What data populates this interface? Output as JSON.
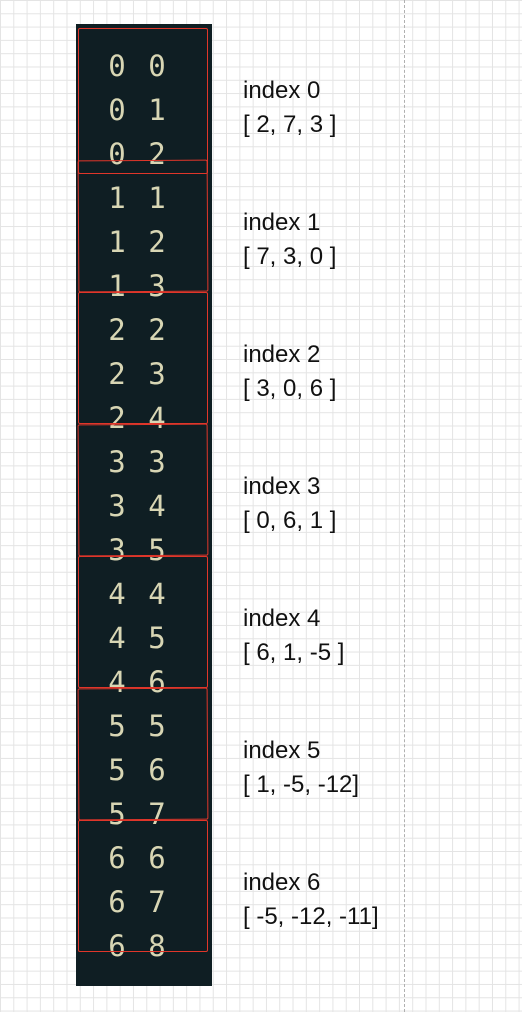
{
  "groups": [
    {
      "rows": [
        [
          "0",
          "0"
        ],
        [
          "0",
          "1"
        ],
        [
          "0",
          "2"
        ]
      ],
      "index_label": "index 0",
      "values_label": "[ 2, 7, 3 ]"
    },
    {
      "rows": [
        [
          "1",
          "1"
        ],
        [
          "1",
          "2"
        ],
        [
          "1",
          "3"
        ]
      ],
      "index_label": "index 1",
      "values_label": "[ 7, 3, 0 ]"
    },
    {
      "rows": [
        [
          "2",
          "2"
        ],
        [
          "2",
          "3"
        ],
        [
          "2",
          "4"
        ]
      ],
      "index_label": "index 2",
      "values_label": "[ 3, 0, 6 ]"
    },
    {
      "rows": [
        [
          "3",
          "3"
        ],
        [
          "3",
          "4"
        ],
        [
          "3",
          "5"
        ]
      ],
      "index_label": "index 3",
      "values_label": "[ 0, 6, 1 ]"
    },
    {
      "rows": [
        [
          "4",
          "4"
        ],
        [
          "4",
          "5"
        ],
        [
          "4",
          "6"
        ]
      ],
      "index_label": "index 4",
      "values_label": "[ 6, 1, -5 ]"
    },
    {
      "rows": [
        [
          "5",
          "5"
        ],
        [
          "5",
          "6"
        ],
        [
          "5",
          "7"
        ]
      ],
      "index_label": "index 5",
      "values_label": "[ 1, -5, -12]"
    },
    {
      "rows": [
        [
          "6",
          "6"
        ],
        [
          "6",
          "7"
        ],
        [
          "6",
          "8"
        ]
      ],
      "index_label": "index 6",
      "values_label": "[ -5, -12, -11]"
    }
  ],
  "colors": {
    "terminal_bg": "#0f1e23",
    "terminal_text": "#d8d6b4",
    "highlight_border": "#e0362a",
    "label_text": "#111111"
  }
}
